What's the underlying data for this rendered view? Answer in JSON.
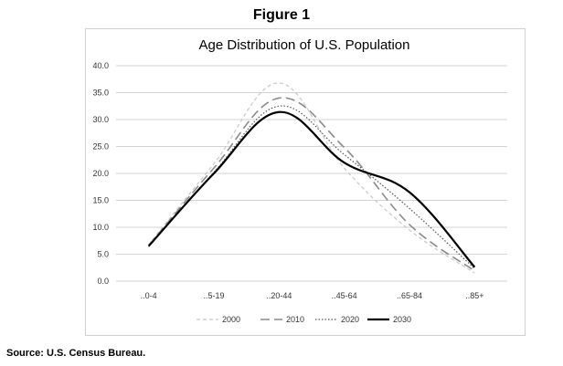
{
  "figure_label": "Figure 1",
  "source_note": "Source: U.S. Census Bureau.",
  "chart_data": {
    "type": "line",
    "title": "Age Distribution of U.S. Population",
    "xlabel": "",
    "ylabel": "",
    "categories": [
      "..0-4",
      "..5-19",
      "..20-44",
      "..45-64",
      "..65-84",
      "..85+"
    ],
    "y_ticks": [
      "0.0",
      "5.0",
      "10.0",
      "15.0",
      "20.0",
      "25.0",
      "30.0",
      "35.0",
      "40.0"
    ],
    "ylim": [
      0,
      40
    ],
    "grid": true,
    "legend_position": "bottom",
    "series": [
      {
        "name": "2000",
        "values": [
          6.8,
          21.8,
          36.8,
          21.0,
          9.5,
          1.5
        ],
        "color": "#c8c8c8",
        "dash": "4,3",
        "width": 1.2
      },
      {
        "name": "2010",
        "values": [
          6.6,
          21.0,
          34.0,
          24.8,
          10.5,
          1.9
        ],
        "color": "#8a8a8a",
        "dash": "10,5",
        "width": 1.6
      },
      {
        "name": "2020",
        "values": [
          6.4,
          20.2,
          32.5,
          23.5,
          13.5,
          2.3
        ],
        "color": "#555555",
        "dash": "1.5,2",
        "width": 1.2
      },
      {
        "name": "2030",
        "values": [
          6.5,
          20.0,
          31.4,
          22.0,
          16.5,
          2.6
        ],
        "color": "#000000",
        "dash": "",
        "width": 2.2
      }
    ]
  }
}
